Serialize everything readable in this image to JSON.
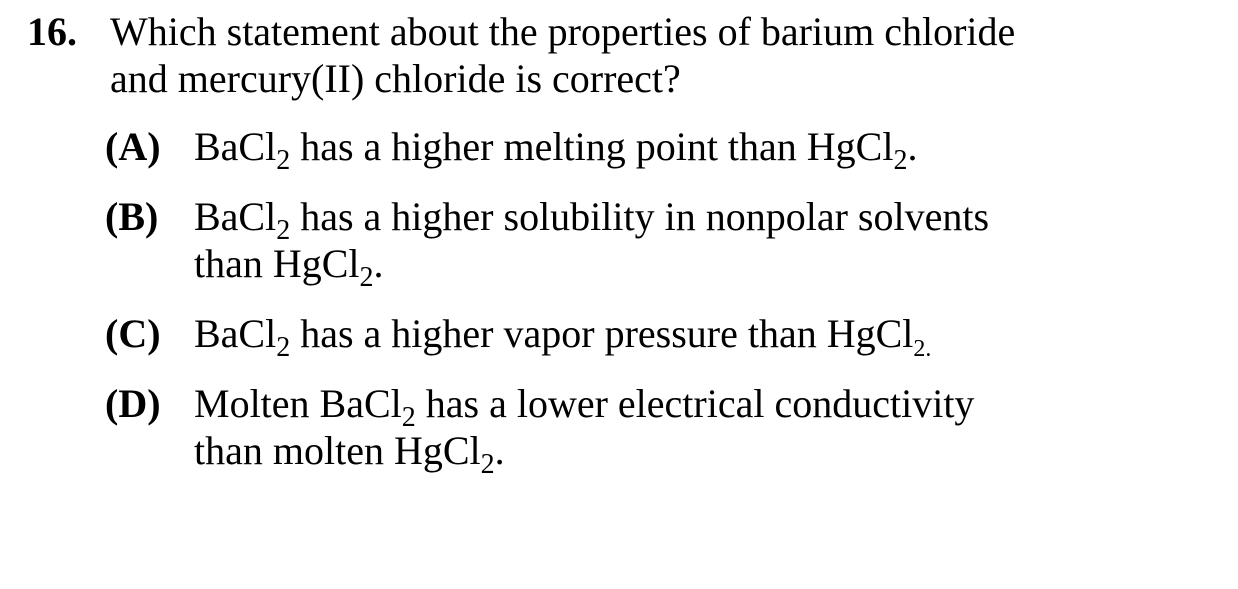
{
  "question": {
    "number": "16.",
    "stem_line1": "Which statement about the properties of barium chloride",
    "stem_line2": "and mercury(II) chloride is correct?"
  },
  "options": [
    {
      "letter": "(A)",
      "lines": [
        [
          {
            "t": "BaCl"
          },
          {
            "s": "2"
          },
          {
            "t": " has a higher melting point than HgCl"
          },
          {
            "s": "2"
          },
          {
            "t": "."
          }
        ]
      ]
    },
    {
      "letter": "(B)",
      "lines": [
        [
          {
            "t": "BaCl"
          },
          {
            "s": "2"
          },
          {
            "t": " has a higher solubility in nonpolar solvents"
          }
        ],
        [
          {
            "t": "than HgCl"
          },
          {
            "s": "2"
          },
          {
            "t": "."
          }
        ]
      ]
    },
    {
      "letter": "(C)",
      "lines": [
        [
          {
            "t": "BaCl"
          },
          {
            "s": "2"
          },
          {
            "t": " has a higher vapor pressure than HgCl"
          },
          {
            "ss": "2."
          }
        ]
      ]
    },
    {
      "letter": "(D)",
      "lines": [
        [
          {
            "t": "Molten BaCl"
          },
          {
            "s": "2"
          },
          {
            "t": " has a lower electrical conductivity"
          }
        ],
        [
          {
            "t": "than molten HgCl"
          },
          {
            "s": "2"
          },
          {
            "t": "."
          }
        ]
      ]
    }
  ]
}
